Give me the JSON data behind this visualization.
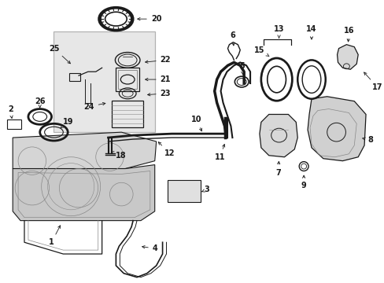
{
  "bg_color": "#ffffff",
  "line_color": "#1a1a1a",
  "figsize": [
    4.89,
    3.6
  ],
  "dpi": 100,
  "label_fs": 7.0
}
